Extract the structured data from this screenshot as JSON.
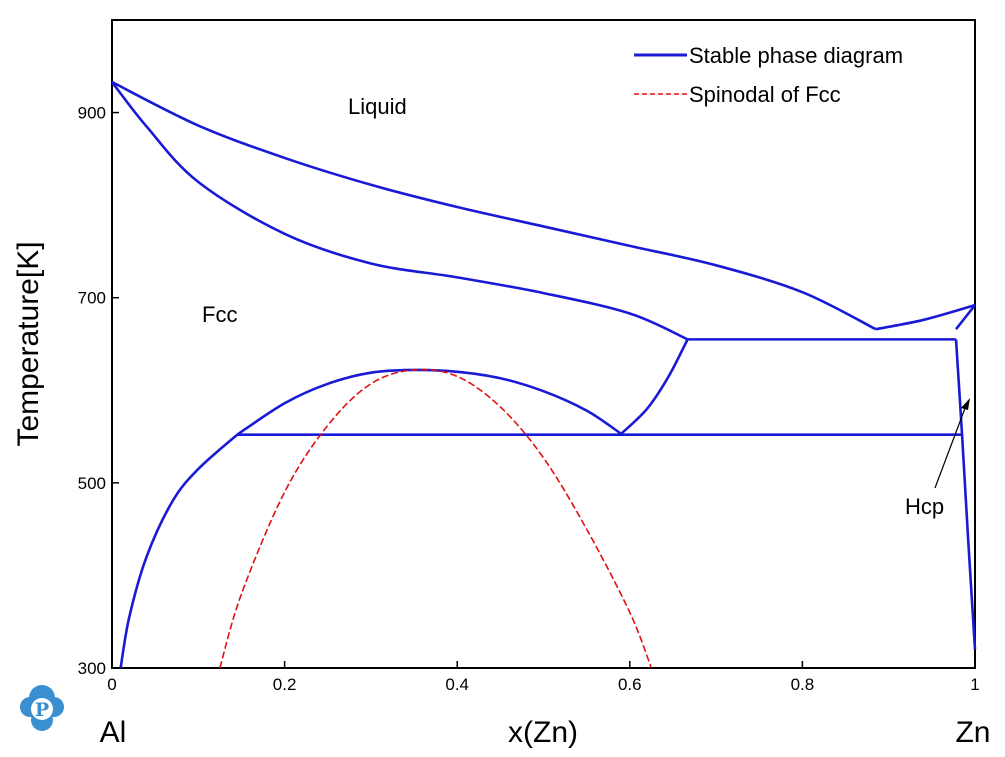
{
  "chart_data": {
    "type": "line",
    "xlabel": "x(Zn)",
    "ylabel": "Temperature[K]",
    "xlim": [
      0,
      1
    ],
    "ylim": [
      300,
      1000
    ],
    "x_ticks": [
      "0",
      "0.2",
      "0.4",
      "0.6",
      "0.8",
      "1"
    ],
    "y_ticks": [
      "300",
      "500",
      "700",
      "900"
    ],
    "x_tick_values": [
      0,
      0.2,
      0.4,
      0.6,
      0.8,
      1
    ],
    "y_tick_values": [
      300,
      500,
      700,
      900
    ],
    "grid": false,
    "legend_position": "top-right",
    "end_labels": {
      "left": "Al",
      "right": "Zn"
    },
    "region_labels": [
      {
        "text": "Liquid",
        "x": 0.31,
        "y": 905
      },
      {
        "text": "Fcc",
        "x": 0.13,
        "y": 690
      }
    ],
    "annotations": [
      {
        "text": "Hcp",
        "x": 0.962,
        "y": 480,
        "arrow_to": {
          "x": 0.995,
          "y": 592
        }
      }
    ],
    "colors": {
      "stable": "#1a1ad6",
      "spinodal": "#e01010"
    },
    "series": [
      {
        "name": "Stable phase diagram",
        "style": "solid",
        "segments": [
          {
            "part": "liquidus-al-side",
            "points": [
              [
                0,
                933
              ],
              [
                0.1,
                886
              ],
              [
                0.2,
                851
              ],
              [
                0.3,
                822
              ],
              [
                0.4,
                798
              ],
              [
                0.5,
                777
              ],
              [
                0.6,
                756
              ],
              [
                0.7,
                735
              ],
              [
                0.8,
                706
              ],
              [
                0.885,
                666
              ]
            ]
          },
          {
            "part": "solidus-al-side",
            "points": [
              [
                0,
                933
              ],
              [
                0.04,
                885
              ],
              [
                0.1,
                825
              ],
              [
                0.2,
                769
              ],
              [
                0.3,
                737
              ],
              [
                0.4,
                722
              ],
              [
                0.5,
                705
              ],
              [
                0.6,
                683
              ],
              [
                0.667,
                655
              ]
            ]
          },
          {
            "part": "liquidus-zn-side",
            "points": [
              [
                0.885,
                666
              ],
              [
                0.94,
                676
              ],
              [
                1,
                692
              ]
            ]
          },
          {
            "part": "hcp-solidus",
            "points": [
              [
                0.978,
                666
              ],
              [
                1,
                692
              ]
            ]
          },
          {
            "part": "eutectic-line",
            "points": [
              [
                0.667,
                655
              ],
              [
                0.978,
                655
              ]
            ]
          },
          {
            "part": "fcc-miscibility-gap",
            "points": [
              [
                0.145,
                552
              ],
              [
                0.2,
                586
              ],
              [
                0.25,
                607
              ],
              [
                0.3,
                619
              ],
              [
                0.35,
                622
              ],
              [
                0.4,
                620
              ],
              [
                0.45,
                613
              ],
              [
                0.5,
                599
              ],
              [
                0.55,
                578
              ],
              [
                0.59,
                553
              ]
            ]
          },
          {
            "part": "monotectoid-boundary",
            "points": [
              [
                0.59,
                553
              ],
              [
                0.62,
                580
              ],
              [
                0.645,
                615
              ],
              [
                0.667,
                655
              ]
            ]
          },
          {
            "part": "eutectoid-line",
            "points": [
              [
                0.145,
                552
              ],
              [
                0.985,
                552
              ]
            ]
          },
          {
            "part": "fcc-solvus",
            "points": [
              [
                0.01,
                300
              ],
              [
                0.02,
                355
              ],
              [
                0.04,
                420
              ],
              [
                0.07,
                480
              ],
              [
                0.1,
                515
              ],
              [
                0.145,
                552
              ]
            ]
          },
          {
            "part": "hcp-solvus",
            "points": [
              [
                0.978,
                655
              ],
              [
                0.985,
                552
              ],
              [
                0.992,
                440
              ],
              [
                1,
                320
              ]
            ]
          }
        ]
      },
      {
        "name": "Spinodal of Fcc",
        "style": "dashed",
        "segments": [
          {
            "part": "spinodal",
            "points": [
              [
                0.125,
                300
              ],
              [
                0.15,
                380
              ],
              [
                0.2,
                490
              ],
              [
                0.25,
                562
              ],
              [
                0.3,
                607
              ],
              [
                0.35,
                622
              ],
              [
                0.4,
                615
              ],
              [
                0.45,
                582
              ],
              [
                0.5,
                527
              ],
              [
                0.55,
                450
              ],
              [
                0.6,
                360
              ],
              [
                0.625,
                300
              ]
            ]
          }
        ]
      }
    ]
  },
  "logo": {
    "letter": "P",
    "color": "#3a8fd0"
  }
}
